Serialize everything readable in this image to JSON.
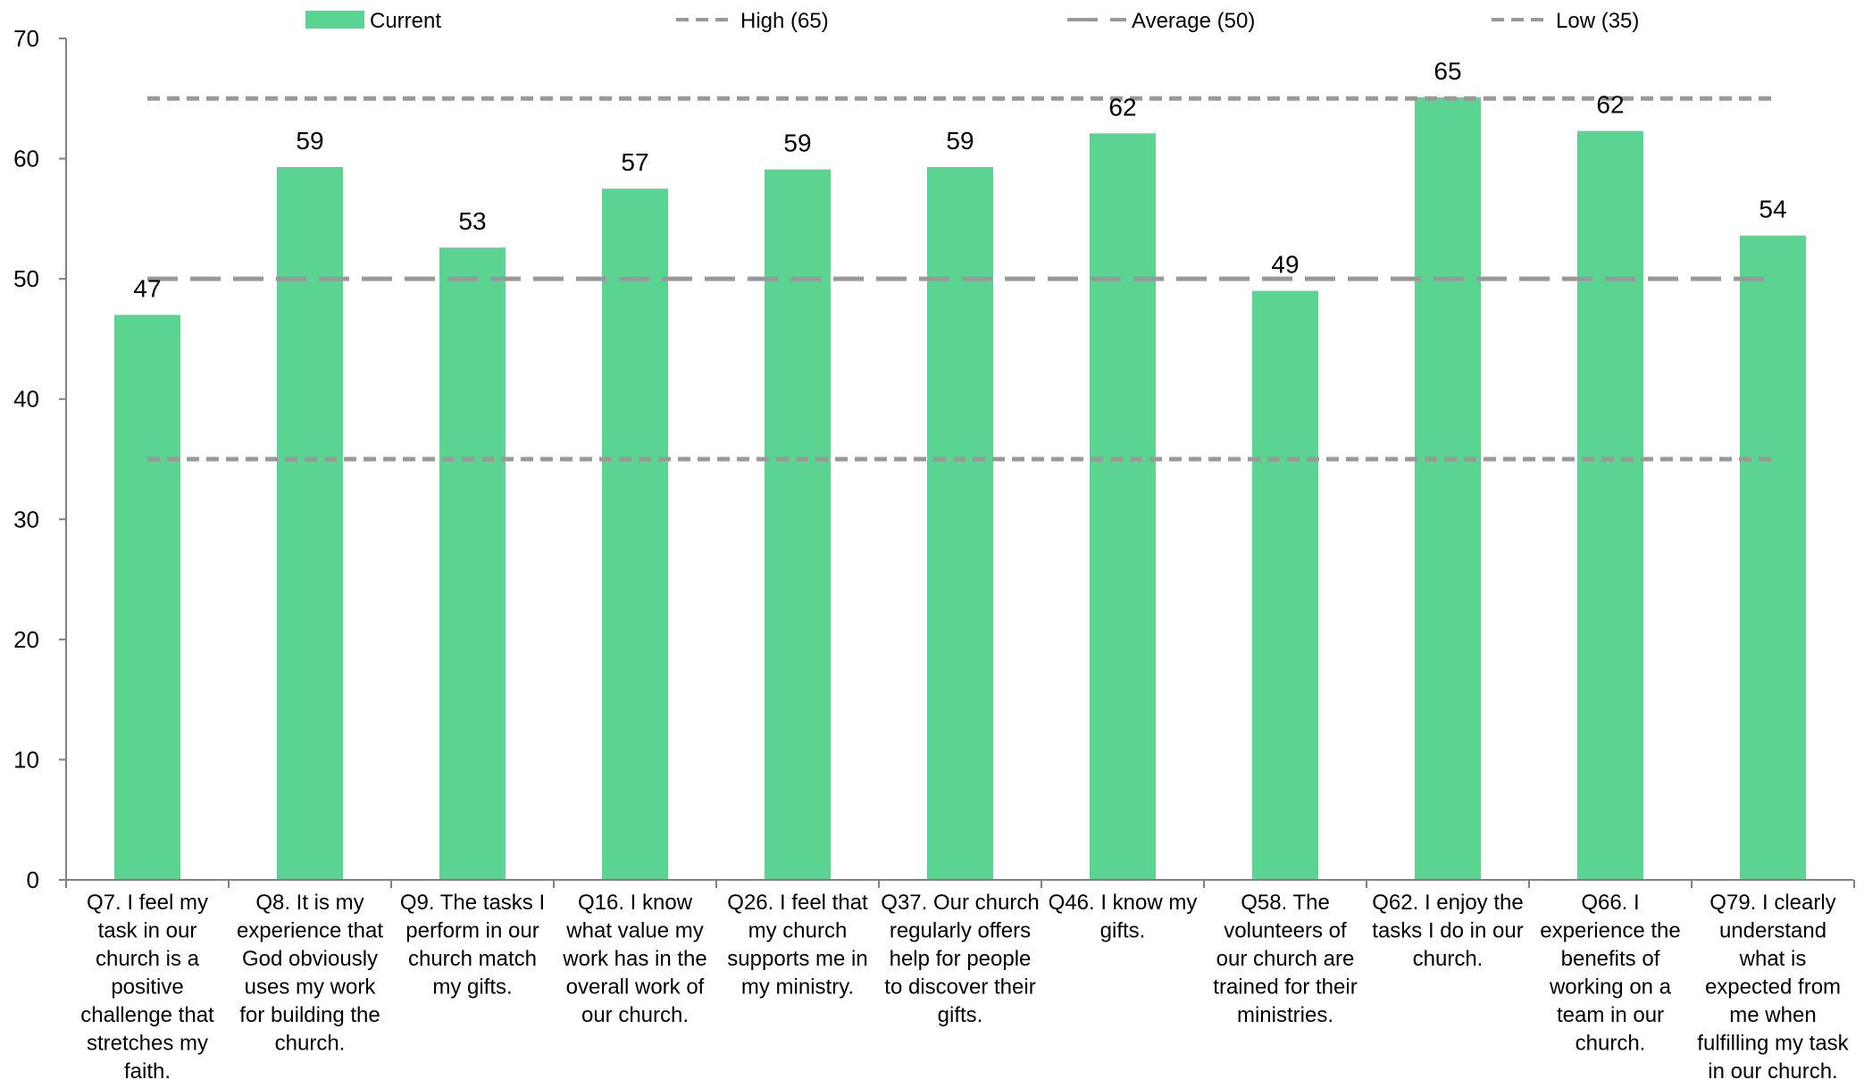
{
  "chart_data": {
    "type": "bar",
    "title": "",
    "xlabel": "",
    "ylabel": "",
    "ylim": [
      0,
      70
    ],
    "yticks": [
      0,
      10,
      20,
      30,
      40,
      50,
      60,
      70
    ],
    "grid": false,
    "legend_position": "top",
    "colors": {
      "bar": "#5ad490",
      "reference_line": "#999999",
      "axis": "#808080"
    },
    "categories": [
      [
        "Q7. I feel my",
        "task in our",
        "church is a",
        "positive",
        "challenge that",
        "stretches my",
        "faith."
      ],
      [
        "Q8. It is my",
        "experience that",
        "God obviously",
        "uses my work",
        "for building the",
        "church."
      ],
      [
        "Q9. The tasks I",
        "perform in our",
        "church match",
        "my gifts."
      ],
      [
        "Q16. I know",
        "what value my",
        "work has in the",
        "overall work of",
        "our church."
      ],
      [
        "Q26. I feel that",
        "my church",
        "supports me in",
        "my ministry."
      ],
      [
        "Q37. Our church",
        "regularly offers",
        "help for people",
        "to discover their",
        "gifts."
      ],
      [
        "Q46. I know my",
        "gifts."
      ],
      [
        "Q58. The",
        "volunteers of",
        "our church are",
        "trained for their",
        "ministries."
      ],
      [
        "Q62. I enjoy the",
        "tasks I do in our",
        "church."
      ],
      [
        "Q66. I",
        "experience the",
        "benefits of",
        "working on a",
        "team in our",
        "church."
      ],
      [
        "Q79. I clearly",
        "understand",
        "what is",
        "expected from",
        "me when",
        "fulfilling my task",
        "in our church."
      ]
    ],
    "series": [
      {
        "name": "Current",
        "type": "bar",
        "values": [
          47,
          59.3,
          52.6,
          57.5,
          59.1,
          59.3,
          62.1,
          49,
          65.1,
          62.3,
          53.6
        ],
        "labels": [
          "47",
          "59",
          "53",
          "57",
          "59",
          "59",
          "62",
          "49",
          "65",
          "62",
          "54"
        ]
      },
      {
        "name": "High (65)",
        "type": "line",
        "style": "short-dash",
        "value": 65
      },
      {
        "name": "Average (50)",
        "type": "line",
        "style": "long-dash",
        "value": 50
      },
      {
        "name": "Low (35)",
        "type": "line",
        "style": "short-dash",
        "value": 35
      }
    ]
  }
}
